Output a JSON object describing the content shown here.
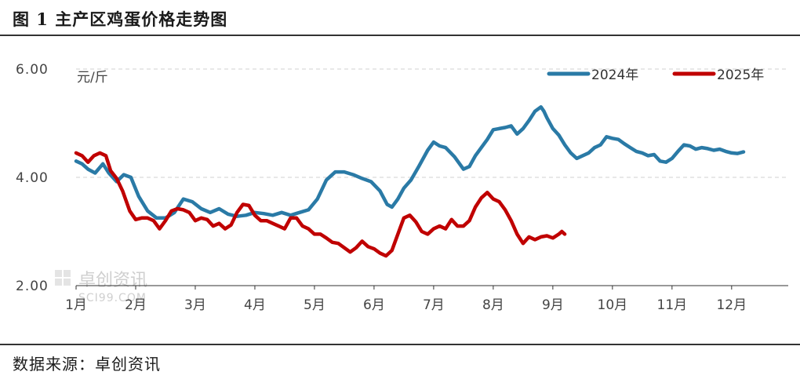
{
  "title": "图 1  主产区鸡蛋价格走势图",
  "source": "数据来源：卓创资讯",
  "watermark": {
    "main": "卓创资讯",
    "sub": "SCI99.COM"
  },
  "colors": {
    "s2024": "#2a7aa6",
    "s2025": "#c00000",
    "grid": "#d0d0d0",
    "axis": "#333333",
    "tick": "#444444"
  },
  "chart_data": {
    "type": "line",
    "ylabel": "元/斤",
    "ylim": [
      2,
      6
    ],
    "yticks": [
      "6.00",
      "4.00",
      "2.00"
    ],
    "xlim": [
      1,
      12.95
    ],
    "categories": [
      "1月",
      "2月",
      "3月",
      "4月",
      "5月",
      "6月",
      "7月",
      "8月",
      "9月",
      "10月",
      "11月",
      "12月"
    ],
    "grid": "horizontal-dashed",
    "legend": "top-right",
    "series": [
      {
        "name": "2024年",
        "color": "#2a7aa6",
        "points": [
          [
            1.0,
            4.3
          ],
          [
            1.1,
            4.25
          ],
          [
            1.2,
            4.15
          ],
          [
            1.32,
            4.08
          ],
          [
            1.45,
            4.25
          ],
          [
            1.55,
            4.08
          ],
          [
            1.68,
            3.92
          ],
          [
            1.8,
            4.05
          ],
          [
            1.92,
            4.0
          ],
          [
            2.05,
            3.65
          ],
          [
            2.2,
            3.38
          ],
          [
            2.35,
            3.25
          ],
          [
            2.5,
            3.25
          ],
          [
            2.65,
            3.35
          ],
          [
            2.8,
            3.6
          ],
          [
            2.95,
            3.55
          ],
          [
            3.1,
            3.42
          ],
          [
            3.25,
            3.35
          ],
          [
            3.4,
            3.42
          ],
          [
            3.55,
            3.32
          ],
          [
            3.7,
            3.28
          ],
          [
            3.85,
            3.3
          ],
          [
            4.0,
            3.35
          ],
          [
            4.15,
            3.33
          ],
          [
            4.3,
            3.3
          ],
          [
            4.45,
            3.35
          ],
          [
            4.6,
            3.3
          ],
          [
            4.75,
            3.35
          ],
          [
            4.9,
            3.4
          ],
          [
            5.05,
            3.6
          ],
          [
            5.2,
            3.95
          ],
          [
            5.35,
            4.1
          ],
          [
            5.5,
            4.1
          ],
          [
            5.65,
            4.05
          ],
          [
            5.8,
            3.98
          ],
          [
            5.95,
            3.92
          ],
          [
            6.1,
            3.75
          ],
          [
            6.22,
            3.5
          ],
          [
            6.3,
            3.45
          ],
          [
            6.4,
            3.6
          ],
          [
            6.5,
            3.8
          ],
          [
            6.62,
            3.95
          ],
          [
            6.75,
            4.2
          ],
          [
            6.9,
            4.5
          ],
          [
            7.0,
            4.65
          ],
          [
            7.1,
            4.58
          ],
          [
            7.2,
            4.55
          ],
          [
            7.35,
            4.38
          ],
          [
            7.5,
            4.15
          ],
          [
            7.6,
            4.2
          ],
          [
            7.7,
            4.4
          ],
          [
            7.8,
            4.55
          ],
          [
            7.9,
            4.7
          ],
          [
            8.0,
            4.88
          ],
          [
            8.1,
            4.9
          ],
          [
            8.2,
            4.92
          ],
          [
            8.3,
            4.95
          ],
          [
            8.4,
            4.8
          ],
          [
            8.5,
            4.9
          ],
          [
            8.6,
            5.05
          ],
          [
            8.7,
            5.22
          ],
          [
            8.8,
            5.3
          ],
          [
            8.85,
            5.22
          ],
          [
            8.9,
            5.1
          ],
          [
            9.0,
            4.9
          ],
          [
            9.1,
            4.78
          ],
          [
            9.2,
            4.6
          ],
          [
            9.3,
            4.45
          ],
          [
            9.4,
            4.35
          ],
          [
            9.5,
            4.4
          ],
          [
            9.6,
            4.45
          ],
          [
            9.7,
            4.55
          ],
          [
            9.8,
            4.6
          ],
          [
            9.9,
            4.75
          ],
          [
            10.0,
            4.72
          ],
          [
            10.1,
            4.7
          ],
          [
            10.2,
            4.62
          ],
          [
            10.3,
            4.55
          ],
          [
            10.4,
            4.48
          ],
          [
            10.5,
            4.45
          ],
          [
            10.6,
            4.4
          ],
          [
            10.7,
            4.42
          ],
          [
            10.8,
            4.3
          ],
          [
            10.9,
            4.28
          ],
          [
            11.0,
            4.35
          ],
          [
            11.1,
            4.48
          ],
          [
            11.2,
            4.6
          ],
          [
            11.3,
            4.58
          ],
          [
            11.4,
            4.52
          ],
          [
            11.5,
            4.55
          ],
          [
            11.6,
            4.53
          ],
          [
            11.7,
            4.5
          ],
          [
            11.8,
            4.52
          ],
          [
            11.9,
            4.48
          ],
          [
            12.0,
            4.45
          ],
          [
            12.1,
            4.44
          ],
          [
            12.2,
            4.47
          ]
        ]
      },
      {
        "name": "2025年",
        "color": "#c00000",
        "points": [
          [
            1.0,
            4.45
          ],
          [
            1.1,
            4.4
          ],
          [
            1.2,
            4.28
          ],
          [
            1.3,
            4.4
          ],
          [
            1.4,
            4.45
          ],
          [
            1.5,
            4.4
          ],
          [
            1.58,
            4.12
          ],
          [
            1.68,
            3.98
          ],
          [
            1.78,
            3.75
          ],
          [
            1.9,
            3.38
          ],
          [
            2.0,
            3.22
          ],
          [
            2.1,
            3.25
          ],
          [
            2.2,
            3.25
          ],
          [
            2.3,
            3.2
          ],
          [
            2.4,
            3.05
          ],
          [
            2.5,
            3.2
          ],
          [
            2.6,
            3.38
          ],
          [
            2.7,
            3.42
          ],
          [
            2.8,
            3.4
          ],
          [
            2.9,
            3.35
          ],
          [
            3.0,
            3.2
          ],
          [
            3.1,
            3.25
          ],
          [
            3.2,
            3.22
          ],
          [
            3.3,
            3.1
          ],
          [
            3.4,
            3.15
          ],
          [
            3.5,
            3.05
          ],
          [
            3.6,
            3.12
          ],
          [
            3.7,
            3.35
          ],
          [
            3.8,
            3.5
          ],
          [
            3.9,
            3.48
          ],
          [
            4.0,
            3.3
          ],
          [
            4.1,
            3.2
          ],
          [
            4.2,
            3.2
          ],
          [
            4.3,
            3.15
          ],
          [
            4.4,
            3.1
          ],
          [
            4.5,
            3.05
          ],
          [
            4.6,
            3.25
          ],
          [
            4.7,
            3.25
          ],
          [
            4.8,
            3.1
          ],
          [
            4.9,
            3.05
          ],
          [
            5.0,
            2.95
          ],
          [
            5.1,
            2.95
          ],
          [
            5.2,
            2.88
          ],
          [
            5.3,
            2.8
          ],
          [
            5.4,
            2.78
          ],
          [
            5.5,
            2.7
          ],
          [
            5.6,
            2.62
          ],
          [
            5.7,
            2.7
          ],
          [
            5.8,
            2.82
          ],
          [
            5.9,
            2.72
          ],
          [
            6.0,
            2.68
          ],
          [
            6.1,
            2.6
          ],
          [
            6.2,
            2.55
          ],
          [
            6.3,
            2.65
          ],
          [
            6.4,
            2.95
          ],
          [
            6.5,
            3.25
          ],
          [
            6.6,
            3.3
          ],
          [
            6.7,
            3.18
          ],
          [
            6.8,
            3.0
          ],
          [
            6.9,
            2.95
          ],
          [
            7.0,
            3.05
          ],
          [
            7.1,
            3.1
          ],
          [
            7.2,
            3.05
          ],
          [
            7.3,
            3.22
          ],
          [
            7.4,
            3.1
          ],
          [
            7.5,
            3.1
          ],
          [
            7.6,
            3.2
          ],
          [
            7.7,
            3.45
          ],
          [
            7.8,
            3.62
          ],
          [
            7.9,
            3.72
          ],
          [
            8.0,
            3.6
          ],
          [
            8.1,
            3.55
          ],
          [
            8.2,
            3.4
          ],
          [
            8.3,
            3.2
          ],
          [
            8.4,
            2.95
          ],
          [
            8.5,
            2.78
          ],
          [
            8.6,
            2.9
          ],
          [
            8.7,
            2.85
          ],
          [
            8.8,
            2.9
          ],
          [
            8.9,
            2.92
          ],
          [
            9.0,
            2.88
          ],
          [
            9.1,
            2.95
          ],
          [
            9.15,
            3.0
          ],
          [
            9.2,
            2.95
          ]
        ]
      }
    ]
  }
}
